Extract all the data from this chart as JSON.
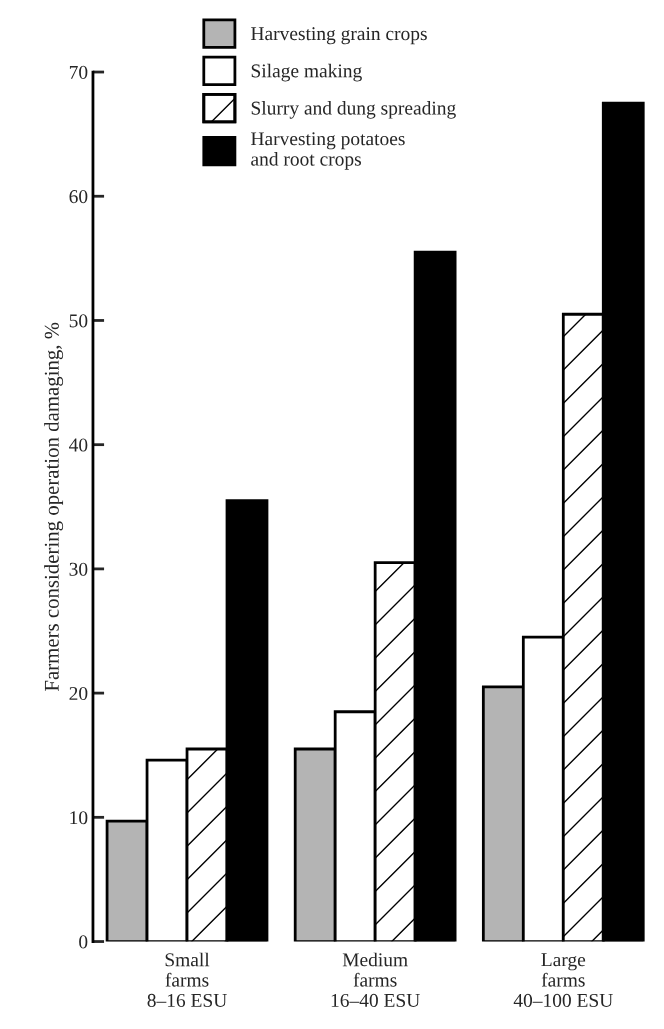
{
  "chart_data": {
    "type": "bar",
    "ylabel": "Farmers considering operation damaging, %",
    "categories": [
      "Small\nfarms\n8–16 ESU",
      "Medium\nfarms\n16–40 ESU",
      "Large\nfarms\n40–100 ESU"
    ],
    "series": [
      {
        "name": "Harvesting grain crops",
        "color": "#b4b4b4",
        "values": [
          9.7,
          15.5,
          20.5
        ]
      },
      {
        "name": "Silage making",
        "color": "#ffffff",
        "values": [
          14.6,
          18.5,
          24.5
        ]
      },
      {
        "name": "Slurry and dung spreading",
        "color": "#ffffff",
        "values": [
          15.5,
          30.5,
          50.5
        ]
      },
      {
        "name": "Harvesting potatoes\nand root crops",
        "color": "#000000",
        "values": [
          35.5,
          55.5,
          67.5
        ]
      }
    ],
    "ylim": [
      0,
      70
    ],
    "yticks": [
      0,
      10,
      20,
      30,
      40,
      50,
      60,
      70
    ],
    "grid": false,
    "legend": "top"
  }
}
